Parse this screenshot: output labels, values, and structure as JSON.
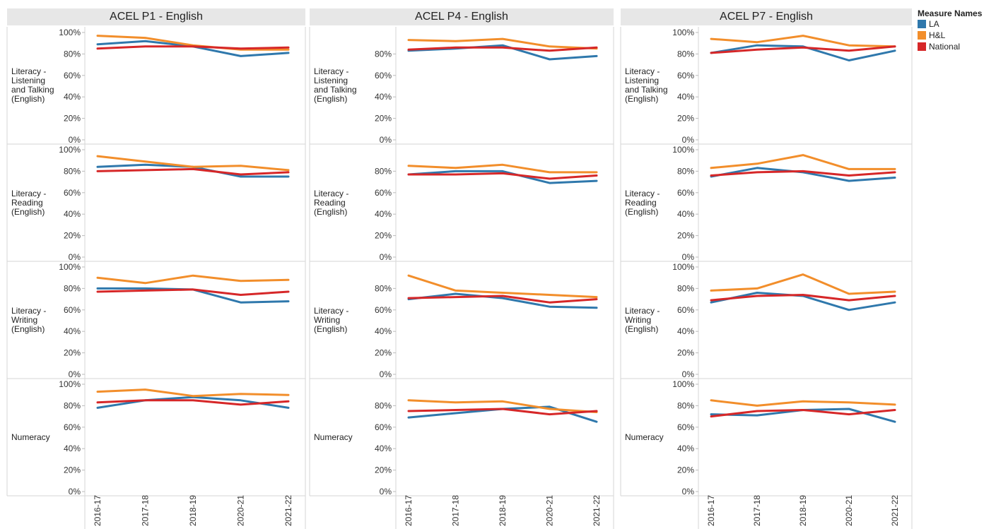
{
  "chart_data": {
    "type": "line",
    "x": [
      "2016-17",
      "2017-18",
      "2018-19",
      "2020-21",
      "2021-22"
    ],
    "columns": [
      "ACEL P1 - English",
      "ACEL P4 - English",
      "ACEL P7 - English"
    ],
    "rows": [
      "Literacy -\nListening\nand Talking\n(English)",
      "Literacy -\nReading\n(English)",
      "Literacy -\nWriting\n(English)",
      "Numeracy"
    ],
    "y_ticks": [
      "0%",
      "20%",
      "40%",
      "60%",
      "80%",
      "100%"
    ],
    "ylim": [
      0,
      100
    ],
    "legend": {
      "title": "Measure Names",
      "position": "top-right"
    },
    "series_meta": [
      {
        "name": "LA",
        "color": "#2f78ac"
      },
      {
        "name": "H&L",
        "color": "#f28e2b"
      },
      {
        "name": "National",
        "color": "#d62728"
      }
    ],
    "panels": [
      [
        {
          "LA": [
            89,
            92,
            87,
            78,
            81
          ],
          "H&L": [
            97,
            95,
            88,
            84,
            84
          ],
          "National": [
            85,
            87,
            87,
            85,
            86
          ]
        },
        {
          "LA": [
            84,
            86,
            84,
            75,
            75
          ],
          "H&L": [
            94,
            89,
            84,
            85,
            81
          ],
          "National": [
            80,
            81,
            82,
            77,
            79
          ]
        },
        {
          "LA": [
            80,
            80,
            79,
            67,
            68
          ],
          "H&L": [
            90,
            85,
            92,
            87,
            88
          ],
          "National": [
            77,
            78,
            79,
            74,
            77
          ]
        },
        {
          "LA": [
            78,
            85,
            88,
            85,
            78
          ],
          "H&L": [
            93,
            95,
            89,
            91,
            90
          ],
          "National": [
            83,
            85,
            85,
            81,
            84
          ]
        }
      ],
      [
        {
          "LA": [
            83,
            85,
            88,
            75,
            78
          ],
          "H&L": [
            93,
            92,
            94,
            87,
            85
          ],
          "National": [
            84,
            86,
            86,
            83,
            86
          ]
        },
        {
          "LA": [
            77,
            80,
            80,
            69,
            71
          ],
          "H&L": [
            85,
            83,
            86,
            79,
            79
          ],
          "National": [
            77,
            77,
            78,
            73,
            76
          ]
        },
        {
          "LA": [
            70,
            75,
            71,
            63,
            62
          ],
          "H&L": [
            92,
            78,
            76,
            74,
            72
          ],
          "National": [
            71,
            72,
            73,
            67,
            70
          ]
        },
        {
          "LA": [
            69,
            73,
            77,
            79,
            65
          ],
          "H&L": [
            85,
            83,
            84,
            77,
            74
          ],
          "National": [
            75,
            76,
            77,
            72,
            75
          ]
        }
      ],
      [
        {
          "LA": [
            81,
            88,
            87,
            74,
            83
          ],
          "H&L": [
            94,
            91,
            97,
            88,
            87
          ],
          "National": [
            81,
            84,
            86,
            83,
            87
          ]
        },
        {
          "LA": [
            75,
            83,
            79,
            71,
            74
          ],
          "H&L": [
            83,
            87,
            95,
            82,
            82
          ],
          "National": [
            76,
            79,
            80,
            76,
            79
          ]
        },
        {
          "LA": [
            67,
            76,
            73,
            60,
            67
          ],
          "H&L": [
            78,
            80,
            93,
            75,
            77
          ],
          "National": [
            69,
            73,
            74,
            69,
            73
          ]
        },
        {
          "LA": [
            72,
            71,
            76,
            77,
            65
          ],
          "H&L": [
            85,
            80,
            84,
            83,
            81
          ],
          "National": [
            70,
            75,
            76,
            72,
            76
          ]
        }
      ]
    ]
  }
}
